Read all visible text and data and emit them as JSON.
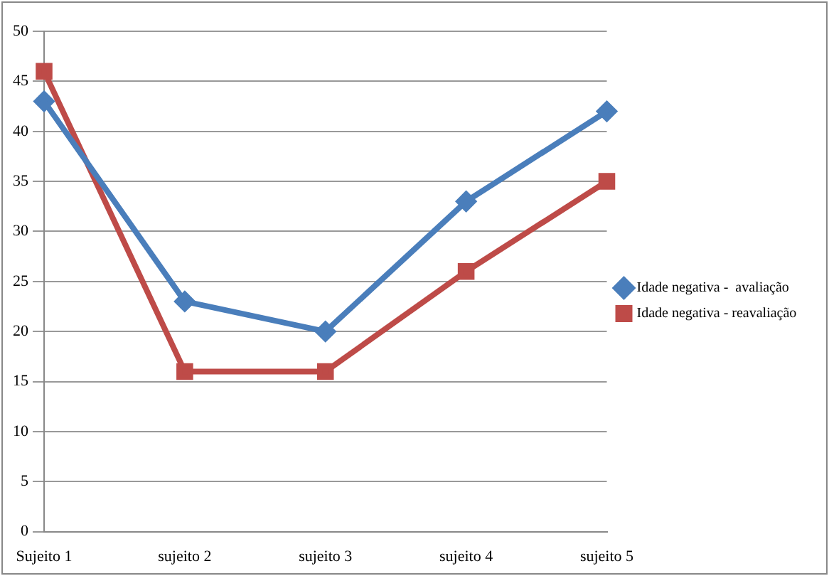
{
  "chart_data": {
    "type": "line",
    "categories": [
      "Sujeito 1",
      "sujeito 2",
      "sujeito 3",
      "sujeito 4",
      "sujeito 5"
    ],
    "series": [
      {
        "name": "Idade negativa -  avaliação",
        "color": "#4a7ebb",
        "marker": "diamond",
        "values": [
          43,
          23,
          20,
          33,
          42
        ]
      },
      {
        "name": "Idade negativa - reavaliação",
        "color": "#be4b48",
        "marker": "square",
        "values": [
          46,
          16,
          16,
          26,
          35
        ]
      }
    ],
    "ylim": [
      0,
      50
    ],
    "yticks": [
      0,
      5,
      10,
      15,
      20,
      25,
      30,
      35,
      40,
      45,
      50
    ],
    "grid": "y",
    "legend": "right",
    "line_style": "solid"
  }
}
